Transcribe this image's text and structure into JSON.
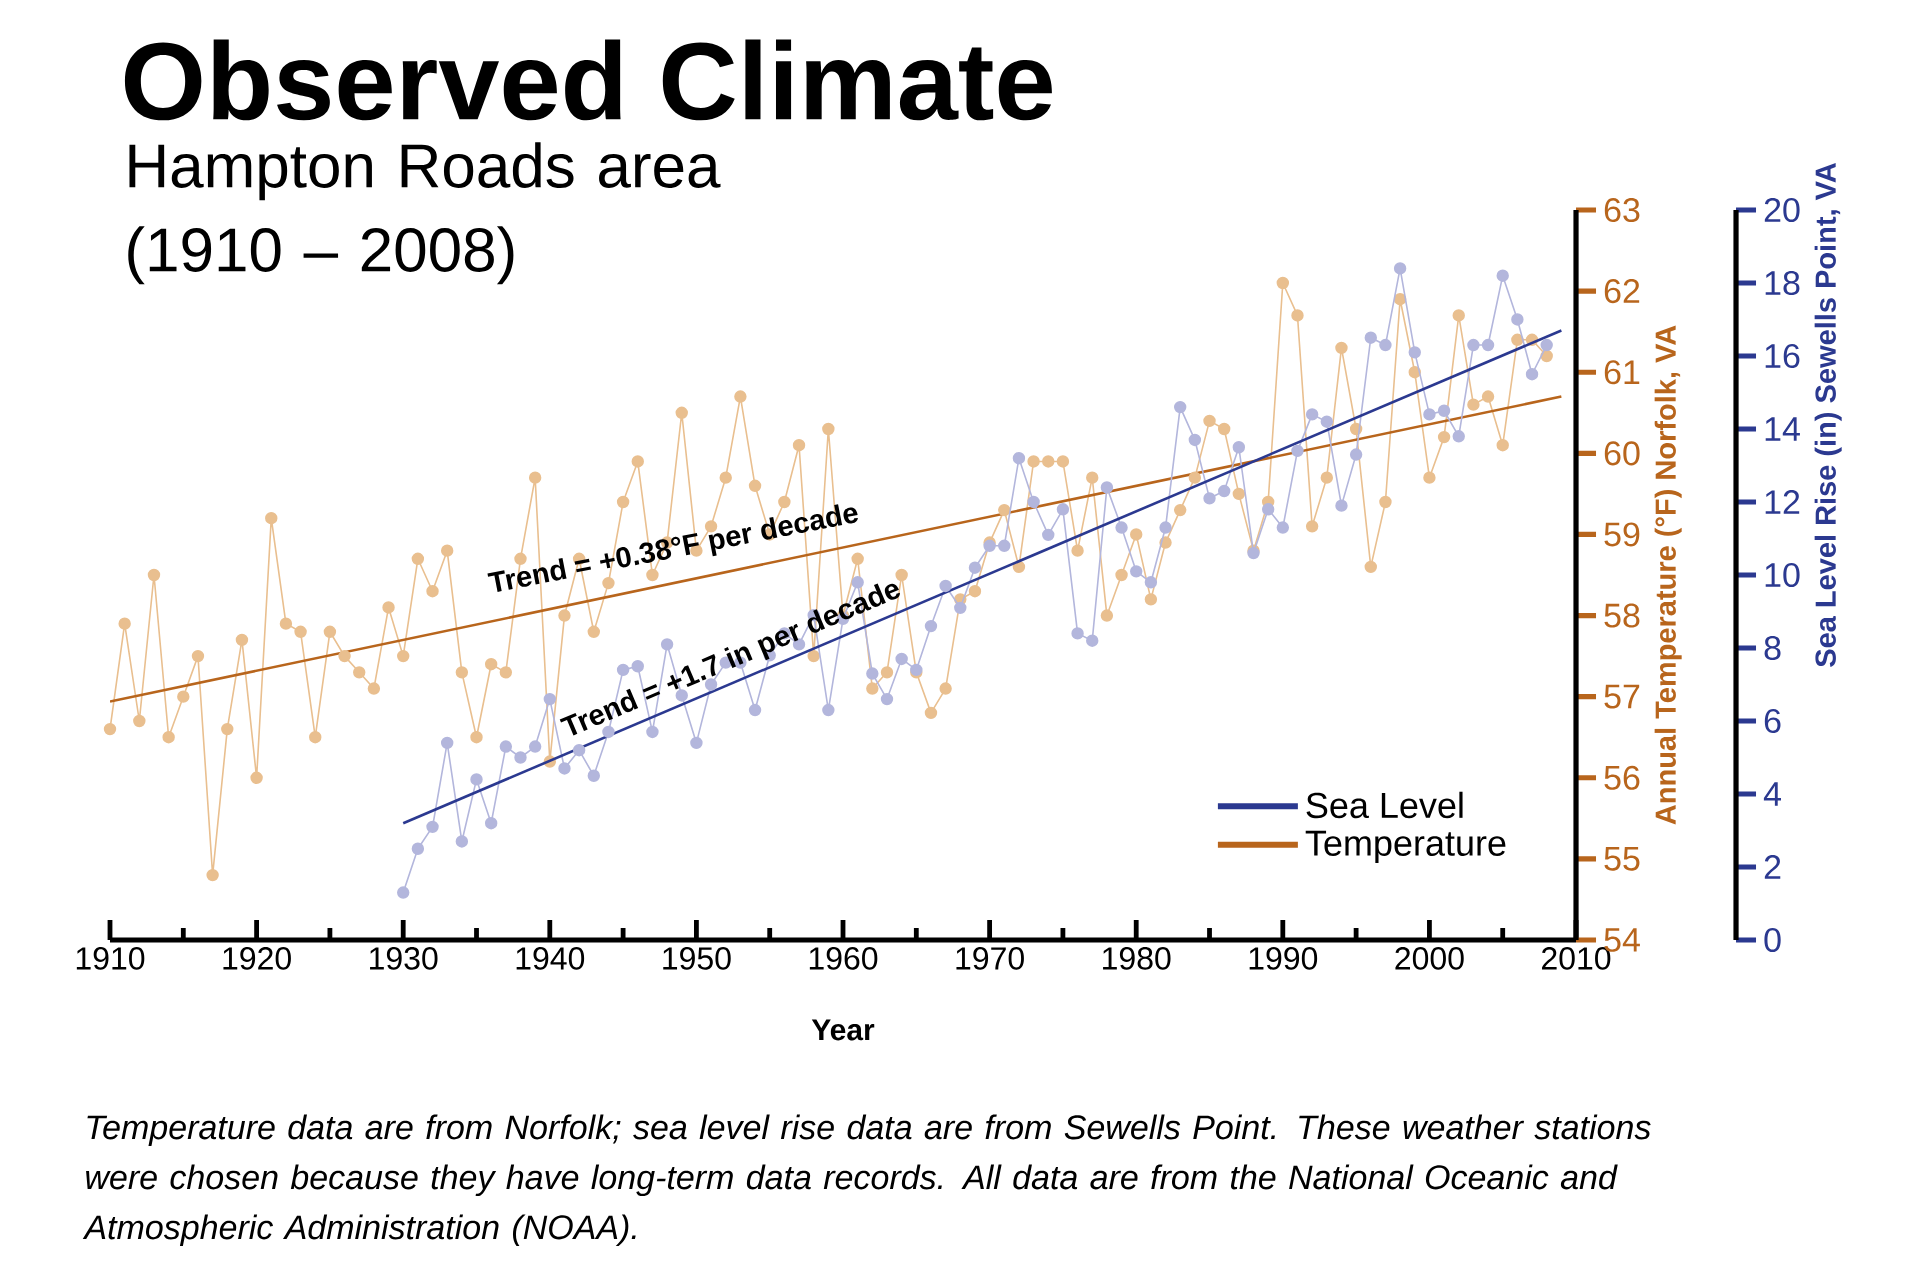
{
  "chart_data": {
    "type": "line",
    "title": "Observed Climate",
    "subtitle": "Hampton Roads area (1910 – 2008)",
    "xlabel": "Year",
    "ylabel": "Annual Temperature (°F) Norfolk, VA",
    "y2label": "Sea Level Rise (in) Sewells Point, VA",
    "annotations": [
      "Trend = +0.38°F per decade",
      "Trend = +1.7 in per decade",
      "Temperature data are from Norfolk; sea level rise data are from Sewells Point. These weather stations were chosen because they have long-term data records. All data are from the National Oceanic and Atmospheric Administration (NOAA)."
    ],
    "xlim": [
      1910,
      2010
    ],
    "xticks": [
      1910,
      1920,
      1930,
      1940,
      1950,
      1960,
      1970,
      1980,
      1990,
      2000,
      2010
    ],
    "ylim": [
      54,
      63
    ],
    "yticks": [
      54,
      55,
      56,
      57,
      58,
      59,
      60,
      61,
      62,
      63
    ],
    "y2lim": [
      0,
      20
    ],
    "y2ticks": [
      0,
      2,
      4,
      6,
      8,
      10,
      12,
      14,
      16,
      18,
      20
    ],
    "legend": "bottom right",
    "marker": "circle",
    "line_style": "solid",
    "x": [
      1910,
      1911,
      1912,
      1913,
      1914,
      1915,
      1916,
      1917,
      1918,
      1919,
      1920,
      1921,
      1922,
      1923,
      1924,
      1925,
      1926,
      1927,
      1928,
      1929,
      1930,
      1931,
      1932,
      1933,
      1934,
      1935,
      1936,
      1937,
      1938,
      1939,
      1940,
      1941,
      1942,
      1943,
      1944,
      1945,
      1946,
      1947,
      1948,
      1949,
      1950,
      1951,
      1952,
      1953,
      1954,
      1955,
      1956,
      1957,
      1958,
      1959,
      1960,
      1961,
      1962,
      1963,
      1964,
      1965,
      1966,
      1967,
      1968,
      1969,
      1970,
      1971,
      1972,
      1973,
      1974,
      1975,
      1976,
      1977,
      1978,
      1979,
      1980,
      1981,
      1982,
      1983,
      1984,
      1985,
      1986,
      1987,
      1988,
      1989,
      1990,
      1991,
      1992,
      1993,
      1994,
      1995,
      1996,
      1997,
      1998,
      1999,
      2000,
      2001,
      2002,
      2003,
      2004,
      2005,
      2006,
      2007,
      2008
    ],
    "series": [
      {
        "name": "Sea Level",
        "color": "#2b3990",
        "axis": "y2",
        "type": "line",
        "marker": "none",
        "x": [
          1930,
          2009
        ],
        "values": [
          3.2,
          16.7
        ]
      },
      {
        "name": "Temperature",
        "color": "#b8651c",
        "type": "line",
        "marker": "none",
        "x": [
          1910,
          2009
        ],
        "values": [
          56.94,
          60.7
        ]
      },
      {
        "color": "#e9bf8f",
        "values": [
          56.6,
          57.9,
          56.7,
          58.5,
          56.5,
          57.0,
          57.5,
          54.8,
          56.6,
          57.7,
          56.0,
          59.2,
          57.9,
          57.8,
          56.5,
          57.8,
          57.5,
          57.3,
          57.1,
          58.1,
          57.5,
          58.7,
          58.3,
          58.8,
          57.3,
          56.5,
          57.4,
          57.3,
          58.7,
          59.7,
          56.2,
          58.0,
          58.7,
          57.8,
          58.4,
          59.4,
          59.9,
          58.5,
          58.9,
          60.5,
          58.8,
          59.1,
          59.7,
          60.7,
          59.6,
          59.0,
          59.4,
          60.1,
          57.5,
          60.3,
          58.0,
          58.7,
          57.1,
          57.3,
          58.5,
          57.3,
          56.8,
          57.1,
          58.2,
          58.3,
          58.9,
          59.3,
          58.6,
          59.9,
          59.9,
          59.9,
          58.8,
          59.7,
          58.0,
          58.5,
          59.0,
          58.2,
          58.9,
          59.3,
          59.7,
          60.4,
          60.3,
          59.5,
          58.8,
          59.4,
          62.1,
          61.7,
          59.1,
          59.7,
          61.3,
          60.3,
          58.6,
          59.4,
          61.9,
          61.0,
          59.7,
          60.2,
          61.7,
          60.6,
          60.7,
          60.1,
          61.4,
          61.4,
          61.2
        ]
      },
      {
        "color": "#b3b6dc",
        "axis": "y2",
        "values": [
          null,
          null,
          null,
          null,
          null,
          null,
          null,
          null,
          null,
          null,
          null,
          null,
          null,
          null,
          null,
          null,
          null,
          null,
          null,
          null,
          1.3,
          2.5,
          3.1,
          5.4,
          2.7,
          4.4,
          3.2,
          5.3,
          5.0,
          5.3,
          6.6,
          4.7,
          5.2,
          4.5,
          5.7,
          7.4,
          7.5,
          5.7,
          8.1,
          6.7,
          5.4,
          7.0,
          7.6,
          7.6,
          6.3,
          7.8,
          8.4,
          8.1,
          8.9,
          6.3,
          8.8,
          9.8,
          7.3,
          6.6,
          7.7,
          7.4,
          8.6,
          9.7,
          9.1,
          10.2,
          10.8,
          10.8,
          13.2,
          12.0,
          11.1,
          11.8,
          8.4,
          8.2,
          12.4,
          11.3,
          10.1,
          9.8,
          11.3,
          14.6,
          13.7,
          12.1,
          12.3,
          13.5,
          10.6,
          11.8,
          11.3,
          13.4,
          14.4,
          14.2,
          11.9,
          13.3,
          16.5,
          16.3,
          18.4,
          16.1,
          14.4,
          14.5,
          13.8,
          16.3,
          16.3,
          18.2,
          17.0,
          15.5,
          16.3
        ]
      }
    ]
  }
}
